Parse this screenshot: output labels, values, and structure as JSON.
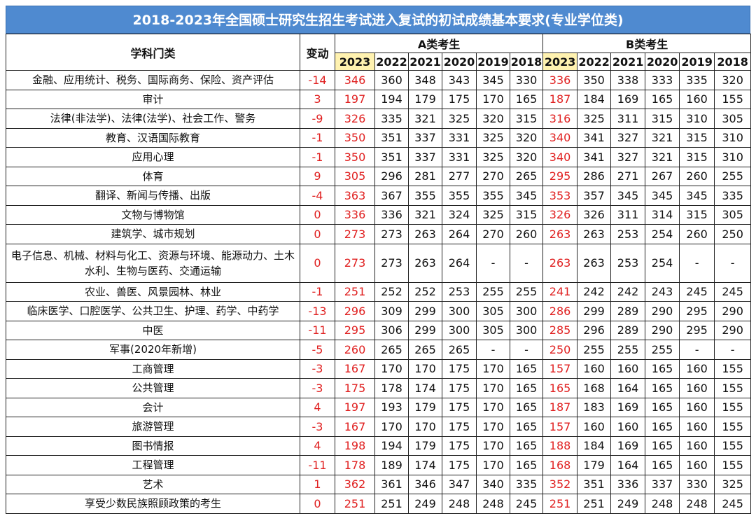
{
  "title": "2018-2023年全国硕士研究生招生考试进入复试的初试成绩基本要求(专业学位类)",
  "headers": {
    "subject": "学科门类",
    "change": "变动",
    "group_a": "A类考生",
    "group_b": "B类考生",
    "years": [
      "2023",
      "2022",
      "2021",
      "2020",
      "2019",
      "2018"
    ]
  },
  "rows": [
    {
      "subject": "金融、应用统计、税务、国际商务、保险、资产评估",
      "change": "-14",
      "a": [
        "346",
        "360",
        "348",
        "343",
        "345",
        "330"
      ],
      "b": [
        "336",
        "350",
        "338",
        "333",
        "335",
        "320"
      ]
    },
    {
      "subject": "审计",
      "change": "3",
      "a": [
        "197",
        "194",
        "179",
        "175",
        "170",
        "165"
      ],
      "b": [
        "187",
        "184",
        "169",
        "165",
        "160",
        "155"
      ]
    },
    {
      "subject": "法律(非法学)、法律(法学)、社会工作、警务",
      "change": "-9",
      "a": [
        "326",
        "335",
        "321",
        "325",
        "320",
        "315"
      ],
      "b": [
        "316",
        "325",
        "311",
        "315",
        "310",
        "305"
      ]
    },
    {
      "subject": "教育、汉语国际教育",
      "change": "-1",
      "a": [
        "350",
        "351",
        "337",
        "331",
        "325",
        "320"
      ],
      "b": [
        "340",
        "341",
        "327",
        "321",
        "315",
        "310"
      ]
    },
    {
      "subject": "应用心理",
      "change": "-1",
      "a": [
        "350",
        "351",
        "337",
        "331",
        "325",
        "320"
      ],
      "b": [
        "340",
        "341",
        "327",
        "321",
        "315",
        "310"
      ]
    },
    {
      "subject": "体育",
      "change": "9",
      "a": [
        "305",
        "296",
        "281",
        "277",
        "270",
        "265"
      ],
      "b": [
        "295",
        "286",
        "271",
        "267",
        "260",
        "255"
      ]
    },
    {
      "subject": "翻译、新闻与传播、出版",
      "change": "-4",
      "a": [
        "363",
        "367",
        "355",
        "355",
        "355",
        "345"
      ],
      "b": [
        "353",
        "357",
        "345",
        "345",
        "345",
        "335"
      ]
    },
    {
      "subject": "文物与博物馆",
      "change": "0",
      "a": [
        "336",
        "336",
        "321",
        "324",
        "325",
        "315"
      ],
      "b": [
        "326",
        "326",
        "311",
        "314",
        "315",
        "305"
      ]
    },
    {
      "subject": "建筑学、城市规划",
      "change": "0",
      "a": [
        "273",
        "273",
        "263",
        "264",
        "270",
        "260"
      ],
      "b": [
        "263",
        "263",
        "253",
        "254",
        "260",
        "250"
      ]
    },
    {
      "subject": "电子信息、机械、材料与化工、资源与环境、能源动力、土木水利、生物与医药、交通运输",
      "change": "0",
      "a": [
        "273",
        "273",
        "263",
        "264",
        "-",
        "-"
      ],
      "b": [
        "263",
        "263",
        "253",
        "254",
        "-",
        "-"
      ]
    },
    {
      "subject": "农业、兽医、风景园林、林业",
      "change": "-1",
      "a": [
        "251",
        "252",
        "252",
        "253",
        "255",
        "255"
      ],
      "b": [
        "241",
        "242",
        "242",
        "243",
        "245",
        "245"
      ]
    },
    {
      "subject": "临床医学、口腔医学、公共卫生、护理、药学、中药学",
      "change": "-13",
      "a": [
        "296",
        "309",
        "299",
        "300",
        "305",
        "300"
      ],
      "b": [
        "286",
        "299",
        "289",
        "290",
        "295",
        "290"
      ]
    },
    {
      "subject": "中医",
      "change": "-11",
      "a": [
        "295",
        "306",
        "299",
        "300",
        "305",
        "300"
      ],
      "b": [
        "285",
        "296",
        "289",
        "290",
        "295",
        "290"
      ]
    },
    {
      "subject": "军事(2020年新增)",
      "change": "-5",
      "a": [
        "260",
        "265",
        "265",
        "265",
        "-",
        "-"
      ],
      "b": [
        "250",
        "255",
        "255",
        "255",
        "-",
        "-"
      ]
    },
    {
      "subject": "工商管理",
      "change": "-3",
      "a": [
        "167",
        "170",
        "170",
        "175",
        "170",
        "165"
      ],
      "b": [
        "157",
        "160",
        "160",
        "165",
        "160",
        "155"
      ]
    },
    {
      "subject": "公共管理",
      "change": "-3",
      "a": [
        "175",
        "178",
        "174",
        "175",
        "170",
        "165"
      ],
      "b": [
        "165",
        "168",
        "164",
        "165",
        "160",
        "155"
      ]
    },
    {
      "subject": "会计",
      "change": "4",
      "a": [
        "197",
        "193",
        "179",
        "175",
        "170",
        "165"
      ],
      "b": [
        "187",
        "183",
        "169",
        "165",
        "160",
        "155"
      ]
    },
    {
      "subject": "旅游管理",
      "change": "-3",
      "a": [
        "167",
        "170",
        "170",
        "175",
        "170",
        "165"
      ],
      "b": [
        "157",
        "160",
        "160",
        "165",
        "160",
        "155"
      ]
    },
    {
      "subject": "图书情报",
      "change": "4",
      "a": [
        "198",
        "194",
        "179",
        "175",
        "170",
        "165"
      ],
      "b": [
        "188",
        "184",
        "169",
        "165",
        "160",
        "155"
      ]
    },
    {
      "subject": "工程管理",
      "change": "-11",
      "a": [
        "178",
        "189",
        "174",
        "175",
        "170",
        "165"
      ],
      "b": [
        "168",
        "179",
        "164",
        "165",
        "160",
        "155"
      ]
    },
    {
      "subject": "艺术",
      "change": "1",
      "a": [
        "362",
        "361",
        "346",
        "347",
        "340",
        "335"
      ],
      "b": [
        "352",
        "351",
        "336",
        "337",
        "330",
        "325"
      ]
    },
    {
      "subject": "享受少数民族照顾政策的考生",
      "change": "0",
      "a": [
        "251",
        "251",
        "249",
        "248",
        "248",
        "245"
      ],
      "b": [
        "251",
        "251",
        "249",
        "248",
        "248",
        "245"
      ]
    }
  ],
  "colors": {
    "title_bg": "#4f8ad0",
    "highlight_year": "#fff2b0",
    "red_values": "#e02020"
  }
}
